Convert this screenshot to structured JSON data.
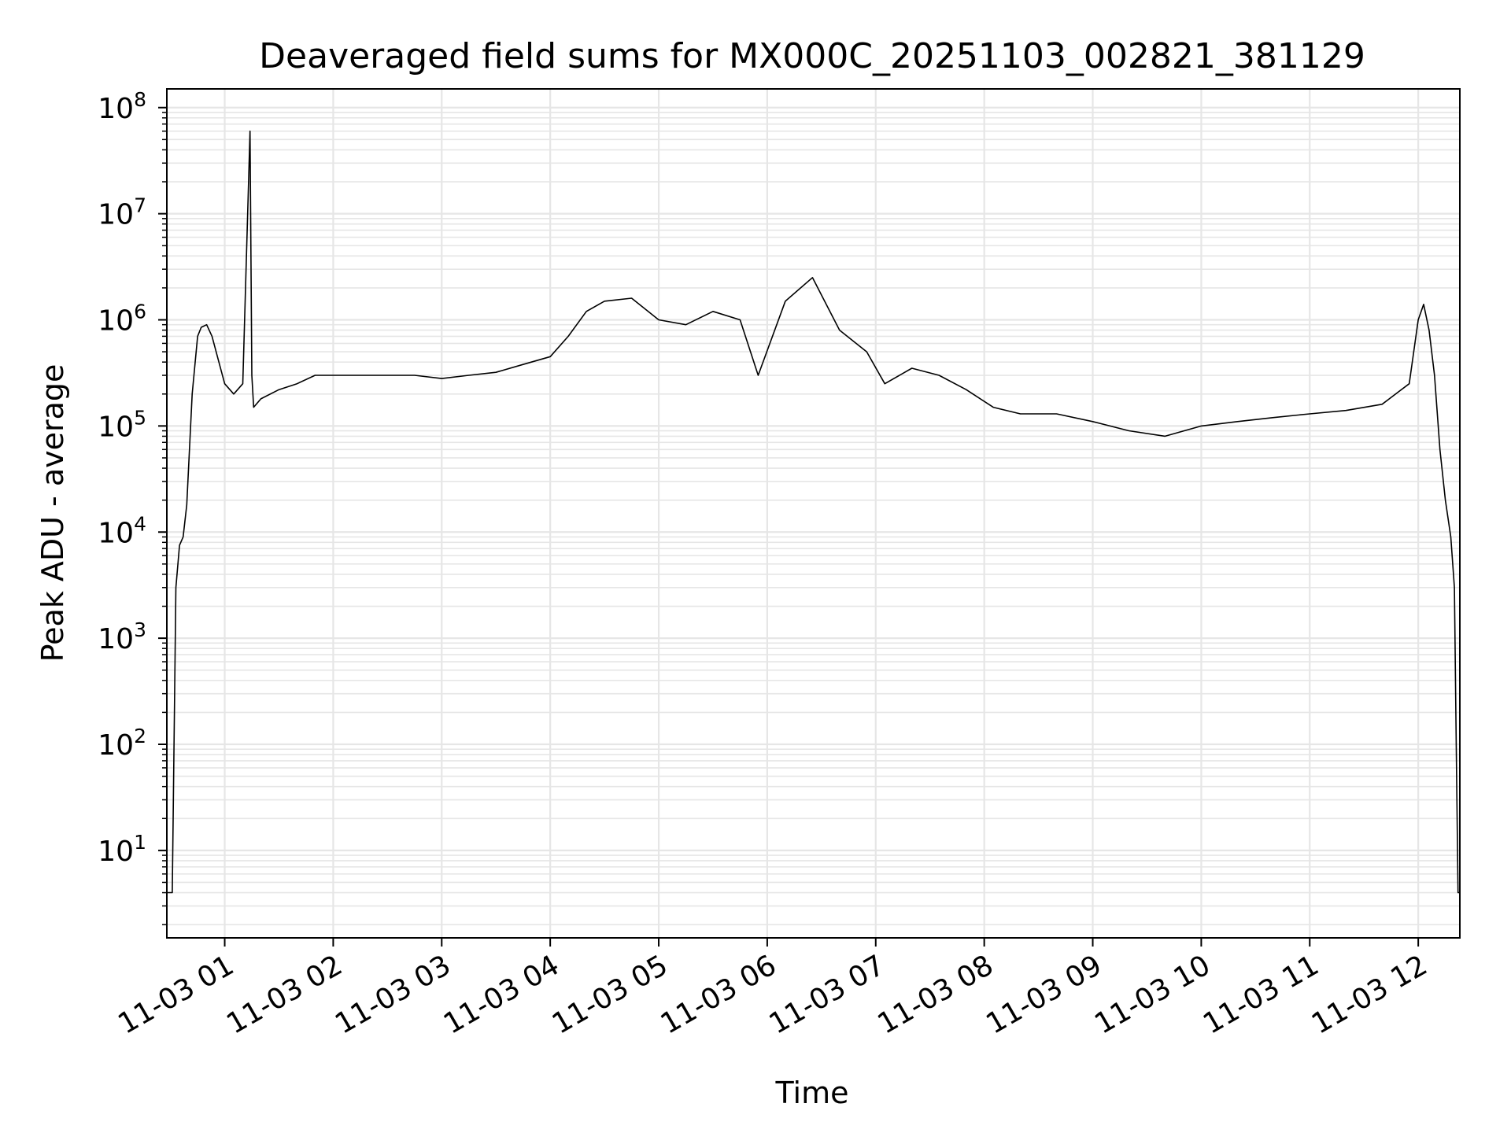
{
  "chart_data": {
    "type": "line",
    "title": "Deaveraged field sums for MX000C_20251103_002821_381129",
    "xlabel": "Time",
    "ylabel": "Peak ADU - average",
    "yscale": "log",
    "ylim": [
      1.5,
      150000000
    ],
    "xlim": [
      "2025-11-03 00:28",
      "2025-11-03 12:23"
    ],
    "grid": true,
    "line_color": "#000000",
    "grid_color": "#e6e6e6",
    "x_ticks": [
      "11-03 01",
      "11-03 02",
      "11-03 03",
      "11-03 04",
      "11-03 05",
      "11-03 06",
      "11-03 07",
      "11-03 08",
      "11-03 09",
      "11-03 10",
      "11-03 11",
      "11-03 12"
    ],
    "x_tick_times": [
      "2025-11-03 01:00",
      "2025-11-03 02:00",
      "2025-11-03 03:00",
      "2025-11-03 04:00",
      "2025-11-03 05:00",
      "2025-11-03 06:00",
      "2025-11-03 07:00",
      "2025-11-03 08:00",
      "2025-11-03 09:00",
      "2025-11-03 10:00",
      "2025-11-03 11:00",
      "2025-11-03 12:00"
    ],
    "y_ticks": [
      {
        "base": "10",
        "exp": "1",
        "value": 10
      },
      {
        "base": "10",
        "exp": "2",
        "value": 100
      },
      {
        "base": "10",
        "exp": "3",
        "value": 1000
      },
      {
        "base": "10",
        "exp": "4",
        "value": 10000
      },
      {
        "base": "10",
        "exp": "5",
        "value": 100000
      },
      {
        "base": "10",
        "exp": "6",
        "value": 1000000
      },
      {
        "base": "10",
        "exp": "7",
        "value": 10000000
      },
      {
        "base": "10",
        "exp": "8",
        "value": 100000000
      }
    ],
    "series": [
      {
        "x": [
          "2025-11-03 00:28",
          "2025-11-03 00:30",
          "2025-11-03 00:31",
          "2025-11-03 00:33",
          "2025-11-03 00:35",
          "2025-11-03 00:37",
          "2025-11-03 00:39",
          "2025-11-03 00:42",
          "2025-11-03 00:45",
          "2025-11-03 00:47",
          "2025-11-03 00:50",
          "2025-11-03 00:53",
          "2025-11-03 00:56",
          "2025-11-03 01:00",
          "2025-11-03 01:05",
          "2025-11-03 01:10",
          "2025-11-03 01:14",
          "2025-11-03 01:15",
          "2025-11-03 01:16",
          "2025-11-03 01:20",
          "2025-11-03 01:30",
          "2025-11-03 01:40",
          "2025-11-03 01:50",
          "2025-11-03 02:00",
          "2025-11-03 02:15",
          "2025-11-03 02:30",
          "2025-11-03 02:45",
          "2025-11-03 03:00",
          "2025-11-03 03:15",
          "2025-11-03 03:30",
          "2025-11-03 03:45",
          "2025-11-03 04:00",
          "2025-11-03 04:10",
          "2025-11-03 04:20",
          "2025-11-03 04:30",
          "2025-11-03 04:45",
          "2025-11-03 05:00",
          "2025-11-03 05:15",
          "2025-11-03 05:30",
          "2025-11-03 05:45",
          "2025-11-03 05:55",
          "2025-11-03 06:10",
          "2025-11-03 06:25",
          "2025-11-03 06:40",
          "2025-11-03 06:55",
          "2025-11-03 07:05",
          "2025-11-03 07:20",
          "2025-11-03 07:35",
          "2025-11-03 07:50",
          "2025-11-03 08:05",
          "2025-11-03 08:20",
          "2025-11-03 08:40",
          "2025-11-03 09:00",
          "2025-11-03 09:20",
          "2025-11-03 09:40",
          "2025-11-03 10:00",
          "2025-11-03 10:20",
          "2025-11-03 10:40",
          "2025-11-03 11:00",
          "2025-11-03 11:20",
          "2025-11-03 11:40",
          "2025-11-03 11:55",
          "2025-11-03 12:00",
          "2025-11-03 12:03",
          "2025-11-03 12:06",
          "2025-11-03 12:09",
          "2025-11-03 12:12",
          "2025-11-03 12:15",
          "2025-11-03 12:18",
          "2025-11-03 12:20",
          "2025-11-03 12:21",
          "2025-11-03 12:22",
          "2025-11-03 12:23"
        ],
        "y": [
          4,
          4,
          4,
          3000,
          7500,
          9000,
          18000,
          200000,
          700000,
          850000,
          900000,
          700000,
          450000,
          250000,
          200000,
          250000,
          60000000,
          300000,
          150000,
          180000,
          220000,
          250000,
          300000,
          300000,
          300000,
          300000,
          300000,
          280000,
          300000,
          320000,
          380000,
          450000,
          700000,
          1200000,
          1500000,
          1600000,
          1000000,
          900000,
          1200000,
          1000000,
          300000,
          1500000,
          2500000,
          800000,
          500000,
          250000,
          350000,
          300000,
          220000,
          150000,
          130000,
          130000,
          110000,
          90000,
          80000,
          100000,
          110000,
          120000,
          130000,
          140000,
          160000,
          250000,
          1000000,
          1400000,
          800000,
          300000,
          60000,
          20000,
          9000,
          3000,
          100,
          4,
          4
        ]
      }
    ]
  }
}
